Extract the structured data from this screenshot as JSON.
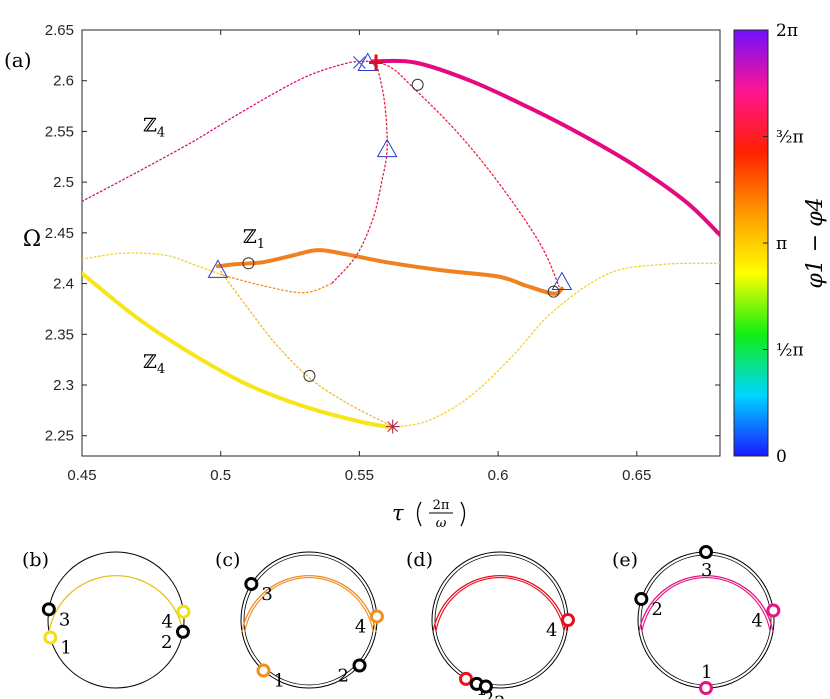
{
  "chart_data": {
    "type": "line",
    "panel_label": "(a)",
    "xlabel": {
      "symbol": "τ",
      "num": "2π",
      "den": "ω"
    },
    "ylabel": "Ω",
    "xlim": [
      0.45,
      0.68
    ],
    "ylim": [
      2.23,
      2.65
    ],
    "x_ticks": [
      0.45,
      0.5,
      0.55,
      0.6,
      0.65
    ],
    "x_tick_labels": [
      "0.45",
      "0.5",
      "0.55",
      "0.6",
      "0.65"
    ],
    "y_ticks": [
      2.25,
      2.3,
      2.35,
      2.4,
      2.45,
      2.5,
      2.55,
      2.6,
      2.65
    ],
    "y_tick_labels": [
      "2.25",
      "2.3",
      "2.35",
      "2.4",
      "2.45",
      "2.5",
      "2.55",
      "2.6",
      "2.65"
    ],
    "colorbar": {
      "label": "φ1 − φ4",
      "range": [
        0,
        6.2832
      ],
      "tick_labels": [
        "0",
        "½π",
        "π",
        "³⁄₂π",
        "2π"
      ],
      "stops": [
        "#1a1aff",
        "#00d5ff",
        "#11ee11",
        "#ffff00",
        "#ff9900",
        "#ff2000",
        "#ff1493",
        "#7010ff"
      ]
    },
    "series": [
      {
        "name": "Z4-upper",
        "style": "solid",
        "color": "#e4097f",
        "x": [
          0.555,
          0.57,
          0.59,
          0.61,
          0.63,
          0.65,
          0.668,
          0.68
        ],
        "y": [
          2.619,
          2.618,
          2.6,
          2.575,
          2.547,
          2.515,
          2.48,
          2.448
        ]
      },
      {
        "name": "Z1",
        "style": "solid",
        "color": "#f08020",
        "x": [
          0.499,
          0.505,
          0.515,
          0.525,
          0.535,
          0.545,
          0.56,
          0.58,
          0.6,
          0.61,
          0.62,
          0.623
        ],
        "y": [
          2.417,
          2.419,
          2.421,
          2.427,
          2.433,
          2.429,
          2.421,
          2.413,
          2.407,
          2.398,
          2.39,
          2.395
        ]
      },
      {
        "name": "Z4-lower",
        "style": "solid",
        "color": "#f7e51a",
        "x": [
          0.45,
          0.47,
          0.49,
          0.51,
          0.53,
          0.55,
          0.562
        ],
        "y": [
          2.41,
          2.366,
          2.33,
          2.3,
          2.279,
          2.264,
          2.258
        ]
      },
      {
        "name": "unstable-pink-left",
        "style": "dotted",
        "color": "#e4097f",
        "x": [
          0.45,
          0.47,
          0.49,
          0.51,
          0.53,
          0.545,
          0.552,
          0.556
        ],
        "y": [
          2.481,
          2.51,
          2.54,
          2.573,
          2.603,
          2.617,
          2.619,
          2.619
        ]
      },
      {
        "name": "unstable-red-arc",
        "style": "dotted",
        "color": "#e82040",
        "x": [
          0.556,
          0.562,
          0.568,
          0.585,
          0.6,
          0.615,
          0.622
        ],
        "y": [
          2.619,
          2.612,
          2.597,
          2.55,
          2.5,
          2.44,
          2.397
        ]
      },
      {
        "name": "unstable-red-dip",
        "style": "dotted",
        "color": "#e82040",
        "x": [
          0.556,
          0.559,
          0.56,
          0.558,
          0.555,
          0.549,
          0.54
        ],
        "y": [
          2.619,
          2.58,
          2.533,
          2.5,
          2.465,
          2.428,
          2.4
        ]
      },
      {
        "name": "unstable-orange",
        "style": "dotted",
        "color": "#f09020",
        "x": [
          0.54,
          0.53,
          0.515,
          0.5
        ],
        "y": [
          2.4,
          2.391,
          2.398,
          2.409
        ]
      },
      {
        "name": "unstable-yellow-left",
        "style": "dotted",
        "color": "#f2d030",
        "x": [
          0.45,
          0.465,
          0.48,
          0.49,
          0.5
        ],
        "y": [
          2.424,
          2.43,
          2.428,
          2.419,
          2.409
        ]
      },
      {
        "name": "unstable-yellow-cross",
        "style": "dotted",
        "color": "#f2b830",
        "x": [
          0.5,
          0.51,
          0.52,
          0.532,
          0.545,
          0.562
        ],
        "y": [
          2.412,
          2.375,
          2.34,
          2.307,
          2.283,
          2.259
        ]
      },
      {
        "name": "unstable-yellow-right",
        "style": "dotted",
        "color": "#f2d030",
        "x": [
          0.562,
          0.575,
          0.59,
          0.605,
          0.62,
          0.64,
          0.66,
          0.68
        ],
        "y": [
          2.258,
          2.265,
          2.289,
          2.328,
          2.373,
          2.41,
          2.419,
          2.42
        ]
      }
    ],
    "markers": [
      {
        "shape": "triangle",
        "x": 0.499,
        "y": 2.413
      },
      {
        "shape": "triangle",
        "x": 0.553,
        "y": 2.617
      },
      {
        "shape": "triangle",
        "x": 0.56,
        "y": 2.532
      },
      {
        "shape": "triangle",
        "x": 0.623,
        "y": 2.401
      },
      {
        "shape": "circle",
        "x": 0.51,
        "y": 2.42
      },
      {
        "shape": "circle",
        "x": 0.571,
        "y": 2.596
      },
      {
        "shape": "circle",
        "x": 0.532,
        "y": 2.309
      },
      {
        "shape": "circle",
        "x": 0.62,
        "y": 2.392
      },
      {
        "shape": "cross",
        "x": 0.55,
        "y": 2.618
      },
      {
        "shape": "plus",
        "x": 0.556,
        "y": 2.618
      },
      {
        "shape": "asterisk",
        "x": 0.562,
        "y": 2.259
      }
    ],
    "annotations": [
      {
        "text": "ℤ",
        "sub": "4",
        "x": 0.472,
        "y": 2.55
      },
      {
        "text": "ℤ",
        "sub": "1",
        "x": 0.508,
        "y": 2.44
      },
      {
        "text": "ℤ",
        "sub": "4",
        "x": 0.472,
        "y": 2.317
      }
    ]
  },
  "insets": [
    {
      "label": "(b)",
      "color": "#e8c21a",
      "double_arc": false,
      "nodes": [
        {
          "num": "1",
          "color": "#f3de10",
          "angle": 195
        },
        {
          "num": "2",
          "color": "#000000",
          "angle": -10
        },
        {
          "num": "3",
          "color": "#000000",
          "angle": 171
        },
        {
          "num": "4",
          "color": "#f3de10",
          "angle": 7
        }
      ]
    },
    {
      "label": "(c)",
      "color": "#f08a1e",
      "double_arc": true,
      "nodes": [
        {
          "num": "1",
          "color": "#f0901e",
          "angle": 228
        },
        {
          "num": "2",
          "color": "#000000",
          "angle": -42
        },
        {
          "num": "3",
          "color": "#000000",
          "angle": 148
        },
        {
          "num": "4",
          "color": "#f0901e",
          "angle": 3
        }
      ]
    },
    {
      "label": "(d)",
      "color": "#e8101e",
      "double_arc": true,
      "nodes": [
        {
          "num": "1",
          "color": "#e8101e",
          "angle": 240
        },
        {
          "num": "2",
          "color": "#000000",
          "angle": -110
        },
        {
          "num": "3",
          "color": "#000000",
          "angle": -102
        },
        {
          "num": "4",
          "color": "#e8101e",
          "angle": 0
        }
      ]
    },
    {
      "label": "(e)",
      "color": "#e4167f",
      "double_arc": true,
      "nodes": [
        {
          "num": "1",
          "color": "#e4167f",
          "angle": 270
        },
        {
          "num": "2",
          "color": "#000000",
          "angle": 162
        },
        {
          "num": "3",
          "color": "#000000",
          "angle": 90
        },
        {
          "num": "4",
          "color": "#e4167f",
          "angle": 8
        }
      ]
    }
  ]
}
